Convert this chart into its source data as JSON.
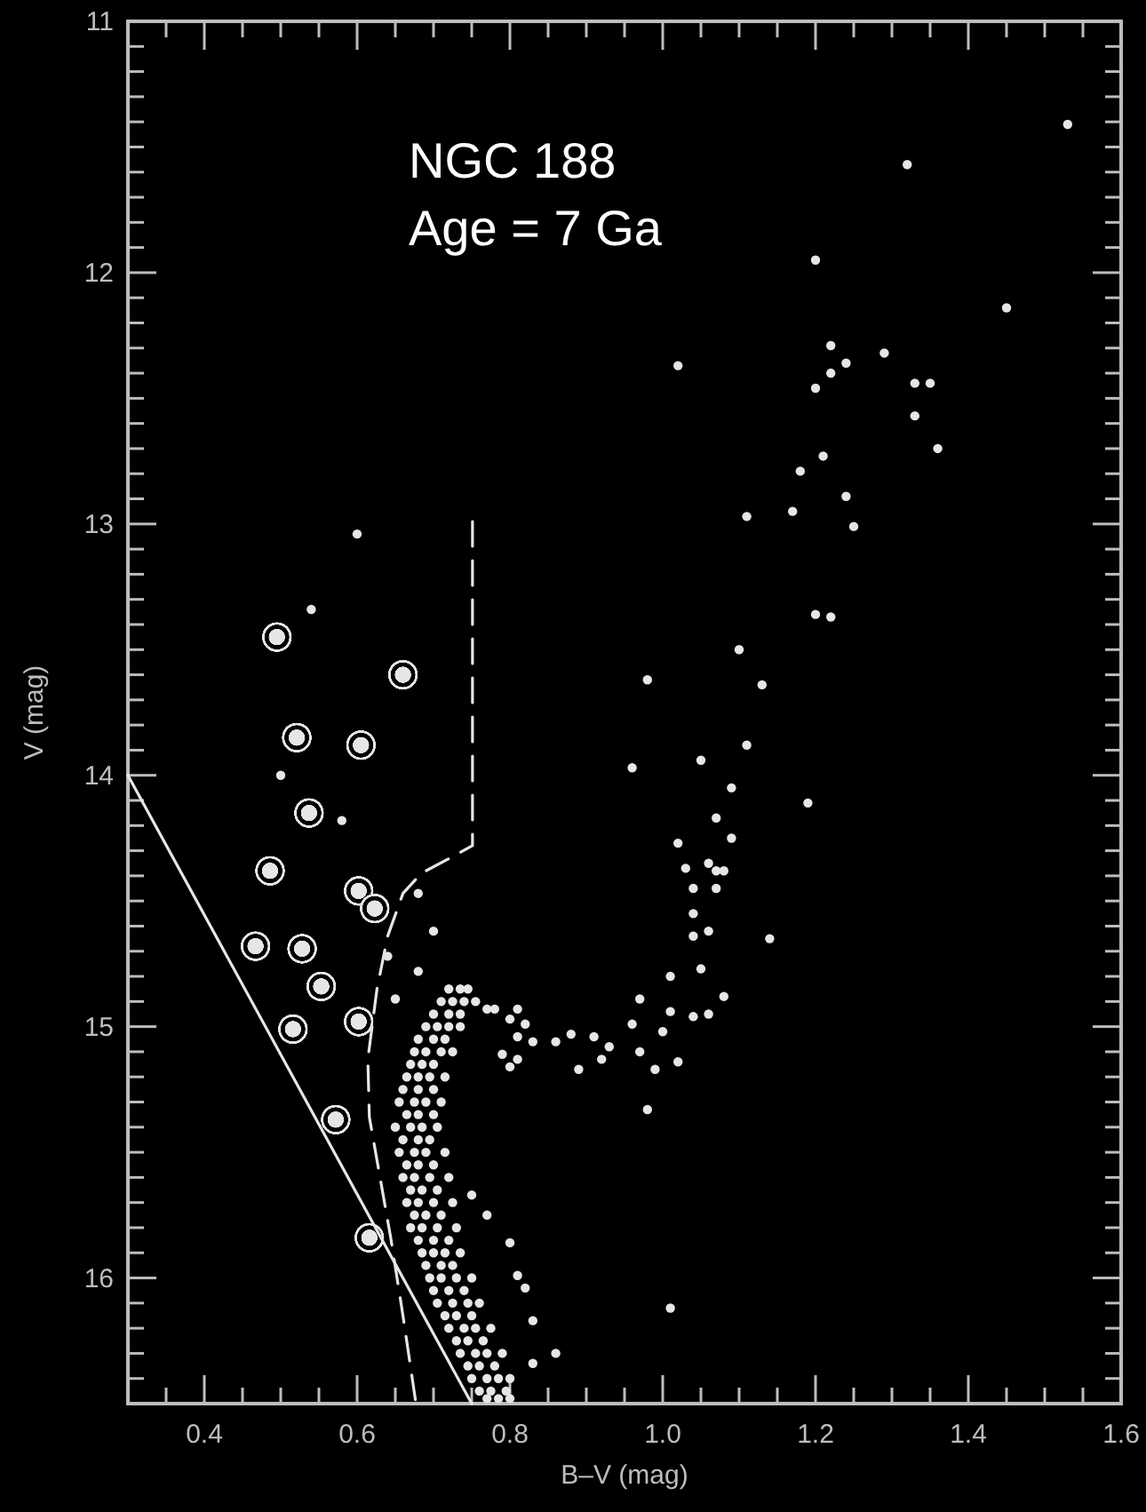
{
  "chart_data": {
    "type": "scatter",
    "xlabel": "B–V (mag)",
    "ylabel": "V (mag)",
    "annotations": [
      "NGC 188",
      "Age = 7 Ga"
    ],
    "xlim": [
      0.3,
      1.6
    ],
    "ylim": [
      16.5,
      11
    ],
    "xticks": [
      {
        "value": 0.35,
        "label": null
      },
      0.4,
      {
        "value": 0.45,
        "label": null
      },
      0.6,
      {
        "value": 0.5,
        "label": null
      },
      {
        "value": 0.55,
        "label": null
      },
      {
        "value": 0.65,
        "label": null
      },
      {
        "value": 0.7,
        "label": null
      },
      {
        "value": 0.75,
        "label": null
      },
      0.8,
      {
        "value": 0.85,
        "label": null
      },
      {
        "value": 0.9,
        "label": null
      },
      {
        "value": 0.95,
        "label": null
      },
      {
        "value": 1,
        "label": "1.0"
      },
      {
        "value": 1.05,
        "label": null
      },
      {
        "value": 1.1,
        "label": null
      },
      {
        "value": 1.15,
        "label": null
      },
      1.2,
      {
        "value": 1.25,
        "label": null
      },
      {
        "value": 1.3,
        "label": null
      },
      {
        "value": 1.35,
        "label": null
      },
      1.4,
      {
        "value": 1.45,
        "label": null
      },
      {
        "value": 1.5,
        "label": null
      },
      {
        "value": 1.55,
        "label": null
      },
      1.6
    ],
    "yticks": [
      11,
      {
        "value": 11.1,
        "label": null
      },
      {
        "value": 11.2,
        "label": null
      },
      {
        "value": 11.3,
        "label": null
      },
      {
        "value": 11.4,
        "label": null
      },
      {
        "value": 11.5,
        "label": null
      },
      {
        "value": 11.6,
        "label": null
      },
      {
        "value": 11.7,
        "label": null
      },
      {
        "value": 11.8,
        "label": null
      },
      {
        "value": 11.9,
        "label": null
      },
      12,
      {
        "value": 12.1,
        "label": null
      },
      {
        "value": 12.2,
        "label": null
      },
      {
        "value": 12.3,
        "label": null
      },
      {
        "value": 12.4,
        "label": null
      },
      {
        "value": 12.5,
        "label": null
      },
      {
        "value": 12.6,
        "label": null
      },
      {
        "value": 12.7,
        "label": null
      },
      {
        "value": 12.8,
        "label": null
      },
      {
        "value": 12.9,
        "label": null
      },
      13,
      {
        "value": 13.1,
        "label": null
      },
      {
        "value": 13.2,
        "label": null
      },
      {
        "value": 13.3,
        "label": null
      },
      {
        "value": 13.4,
        "label": null
      },
      {
        "value": 13.5,
        "label": null
      },
      {
        "value": 13.6,
        "label": null
      },
      {
        "value": 13.7,
        "label": null
      },
      {
        "value": 13.8,
        "label": null
      },
      {
        "value": 13.9,
        "label": null
      },
      14,
      {
        "value": 14.1,
        "label": null
      },
      {
        "value": 14.2,
        "label": null
      },
      {
        "value": 14.3,
        "label": null
      },
      {
        "value": 14.4,
        "label": null
      },
      {
        "value": 14.5,
        "label": null
      },
      {
        "value": 14.6,
        "label": null
      },
      {
        "value": 14.7,
        "label": null
      },
      {
        "value": 14.8,
        "label": null
      },
      {
        "value": 14.9,
        "label": null
      },
      15,
      {
        "value": 15.1,
        "label": null
      },
      {
        "value": 15.2,
        "label": null
      },
      {
        "value": 15.3,
        "label": null
      },
      {
        "value": 15.4,
        "label": null
      },
      {
        "value": 15.5,
        "label": null
      },
      {
        "value": 15.6,
        "label": null
      },
      {
        "value": 15.7,
        "label": null
      },
      {
        "value": 15.8,
        "label": null
      },
      {
        "value": 15.9,
        "label": null
      },
      16,
      {
        "value": 16.1,
        "label": null
      },
      {
        "value": 16.2,
        "label": null
      },
      {
        "value": 16.3,
        "label": null
      },
      {
        "value": 16.4,
        "label": null
      }
    ],
    "grid": false,
    "series": [
      {
        "marker": "circle",
        "color": "#e6e6e6",
        "x": [
          1.53,
          1.32,
          1.2,
          1.45,
          1.02,
          1.22,
          1.24,
          1.22,
          1.2,
          1.29,
          1.33,
          1.35,
          1.33,
          1.36,
          1.21,
          1.18,
          1.24,
          1.17,
          1.25,
          1.11,
          1.2,
          1.22,
          1.1,
          0.98,
          1.13,
          1.11,
          0.96,
          1.05,
          1.19,
          1.09,
          1.07,
          1.09,
          1.02,
          1.03,
          1.06,
          1.07,
          1.08,
          1.04,
          1.07,
          1.04,
          1.06,
          1.04,
          1.14,
          1.05,
          1.01,
          0.97,
          1.08,
          1.01,
          1.04,
          1.06,
          0.96,
          1.0,
          0.97,
          1.02,
          0.99,
          0.98,
          0.91,
          0.93,
          0.92,
          0.89,
          0.88,
          0.86,
          0.83,
          0.81,
          0.79,
          0.81,
          0.8,
          1.01,
          0.82,
          0.8,
          0.78,
          0.77,
          0.81,
          0.6,
          0.54,
          0.5,
          0.58,
          0.68,
          0.7,
          0.64,
          0.68,
          0.65,
          0.75,
          0.77,
          0.8,
          0.81,
          0.82,
          0.83,
          0.86,
          0.83,
          0.72,
          0.735,
          0.745,
          0.71,
          0.725,
          0.74,
          0.755,
          0.7,
          0.72,
          0.735,
          0.69,
          0.705,
          0.72,
          0.735,
          0.68,
          0.7,
          0.715,
          0.675,
          0.69,
          0.71,
          0.725,
          0.67,
          0.685,
          0.7,
          0.665,
          0.68,
          0.695,
          0.715,
          0.66,
          0.68,
          0.7,
          0.655,
          0.675,
          0.69,
          0.71,
          0.665,
          0.68,
          0.7,
          0.65,
          0.67,
          0.685,
          0.705,
          0.66,
          0.68,
          0.695,
          0.655,
          0.675,
          0.69,
          0.715,
          0.665,
          0.68,
          0.7,
          0.66,
          0.675,
          0.695,
          0.72,
          0.67,
          0.685,
          0.705,
          0.665,
          0.68,
          0.7,
          0.725,
          0.675,
          0.69,
          0.71,
          0.67,
          0.685,
          0.705,
          0.73,
          0.68,
          0.7,
          0.72,
          0.685,
          0.7,
          0.715,
          0.735,
          0.69,
          0.71,
          0.725,
          0.695,
          0.71,
          0.73,
          0.75,
          0.7,
          0.72,
          0.74,
          0.705,
          0.725,
          0.745,
          0.76,
          0.715,
          0.73,
          0.75,
          0.72,
          0.74,
          0.755,
          0.775,
          0.73,
          0.745,
          0.765,
          0.735,
          0.755,
          0.77,
          0.79,
          0.745,
          0.76,
          0.78,
          0.75,
          0.77,
          0.785,
          0.8,
          0.76,
          0.775,
          0.795,
          0.77,
          0.785,
          0.8
        ],
        "values": [
          11.41,
          11.57,
          11.95,
          12.14,
          12.37,
          12.29,
          12.36,
          12.4,
          12.46,
          12.32,
          12.44,
          12.44,
          12.57,
          12.7,
          12.73,
          12.79,
          12.89,
          12.95,
          13.01,
          12.97,
          13.36,
          13.37,
          13.5,
          13.62,
          13.64,
          13.88,
          13.97,
          13.94,
          14.11,
          14.05,
          14.17,
          14.25,
          14.27,
          14.37,
          14.35,
          14.38,
          14.38,
          14.45,
          14.45,
          14.55,
          14.62,
          14.64,
          14.65,
          14.77,
          14.8,
          14.89,
          14.88,
          14.94,
          14.96,
          14.95,
          14.99,
          15.02,
          15.1,
          15.14,
          15.17,
          15.33,
          15.04,
          15.08,
          15.13,
          15.17,
          15.03,
          15.06,
          15.06,
          15.04,
          15.11,
          15.13,
          15.16,
          16.12,
          14.99,
          14.97,
          14.93,
          14.93,
          14.93,
          13.04,
          13.34,
          14.0,
          14.18,
          14.47,
          14.62,
          14.72,
          14.78,
          14.89,
          15.67,
          15.75,
          15.86,
          15.99,
          16.04,
          16.17,
          16.3,
          16.34,
          14.85,
          14.85,
          14.85,
          14.9,
          14.9,
          14.9,
          14.9,
          14.95,
          14.95,
          14.95,
          15.0,
          15.0,
          15.0,
          15.0,
          15.05,
          15.05,
          15.05,
          15.1,
          15.1,
          15.1,
          15.1,
          15.15,
          15.15,
          15.15,
          15.2,
          15.2,
          15.2,
          15.2,
          15.25,
          15.25,
          15.25,
          15.3,
          15.3,
          15.3,
          15.3,
          15.35,
          15.35,
          15.35,
          15.4,
          15.4,
          15.4,
          15.4,
          15.45,
          15.45,
          15.45,
          15.5,
          15.5,
          15.5,
          15.5,
          15.55,
          15.55,
          15.55,
          15.6,
          15.6,
          15.6,
          15.6,
          15.65,
          15.65,
          15.65,
          15.7,
          15.7,
          15.7,
          15.7,
          15.75,
          15.75,
          15.75,
          15.8,
          15.8,
          15.8,
          15.8,
          15.85,
          15.85,
          15.85,
          15.9,
          15.9,
          15.9,
          15.9,
          15.95,
          15.95,
          15.95,
          16.0,
          16.0,
          16.0,
          16.0,
          16.05,
          16.05,
          16.05,
          16.1,
          16.1,
          16.1,
          16.1,
          16.15,
          16.15,
          16.15,
          16.2,
          16.2,
          16.2,
          16.2,
          16.25,
          16.25,
          16.25,
          16.3,
          16.3,
          16.3,
          16.3,
          16.35,
          16.35,
          16.35,
          16.4,
          16.4,
          16.4,
          16.4,
          16.45,
          16.45,
          16.45,
          16.48,
          16.48,
          16.48
        ]
      },
      {
        "marker": "circle",
        "color": "#e6e6e6",
        "x": [
          0.495,
          0.66,
          0.521,
          0.605,
          0.537,
          0.486,
          0.602,
          0.623,
          0.467,
          0.528,
          0.553,
          0.516,
          0.602,
          0.572,
          0.616
        ],
        "values": [
          13.45,
          13.6,
          13.85,
          13.88,
          14.15,
          14.38,
          14.46,
          14.53,
          14.68,
          14.69,
          14.84,
          15.01,
          14.98,
          15.37,
          15.84
        ]
      },
      {
        "type": "line",
        "line_style": "solid",
        "color": "#e6e6e6",
        "x": [
          0.3,
          0.75
        ],
        "values": [
          14.0,
          16.5
        ]
      },
      {
        "type": "line",
        "line_style": "dashed",
        "color": "#e6e6e6",
        "x": [
          0.751,
          0.751,
          0.721,
          0.684,
          0.66,
          0.64,
          0.626,
          0.614,
          0.616,
          0.63,
          0.644,
          0.66,
          0.677
        ],
        "values": [
          12.99,
          14.28,
          14.33,
          14.39,
          14.47,
          14.64,
          14.85,
          15.13,
          15.36,
          15.6,
          15.84,
          16.15,
          16.5
        ]
      }
    ]
  }
}
